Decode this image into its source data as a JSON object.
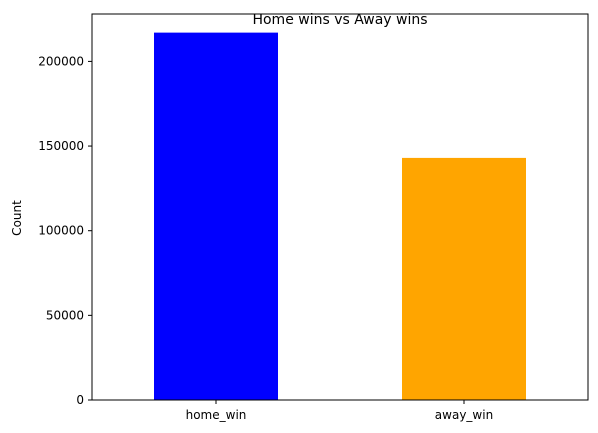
{
  "chart_data": {
    "type": "bar",
    "title": "Home wins vs Away wins",
    "xlabel": "",
    "ylabel": "Count",
    "categories": [
      "home_win",
      "away_win"
    ],
    "values": [
      217000,
      143000
    ],
    "colors": [
      "#0000ff",
      "#ffa500"
    ],
    "ylim": [
      0,
      228000
    ],
    "yticks": [
      0,
      50000,
      100000,
      150000,
      200000
    ],
    "ytick_labels": [
      "0",
      "50000",
      "100000",
      "150000",
      "200000"
    ],
    "grid": false,
    "legend": "none"
  }
}
